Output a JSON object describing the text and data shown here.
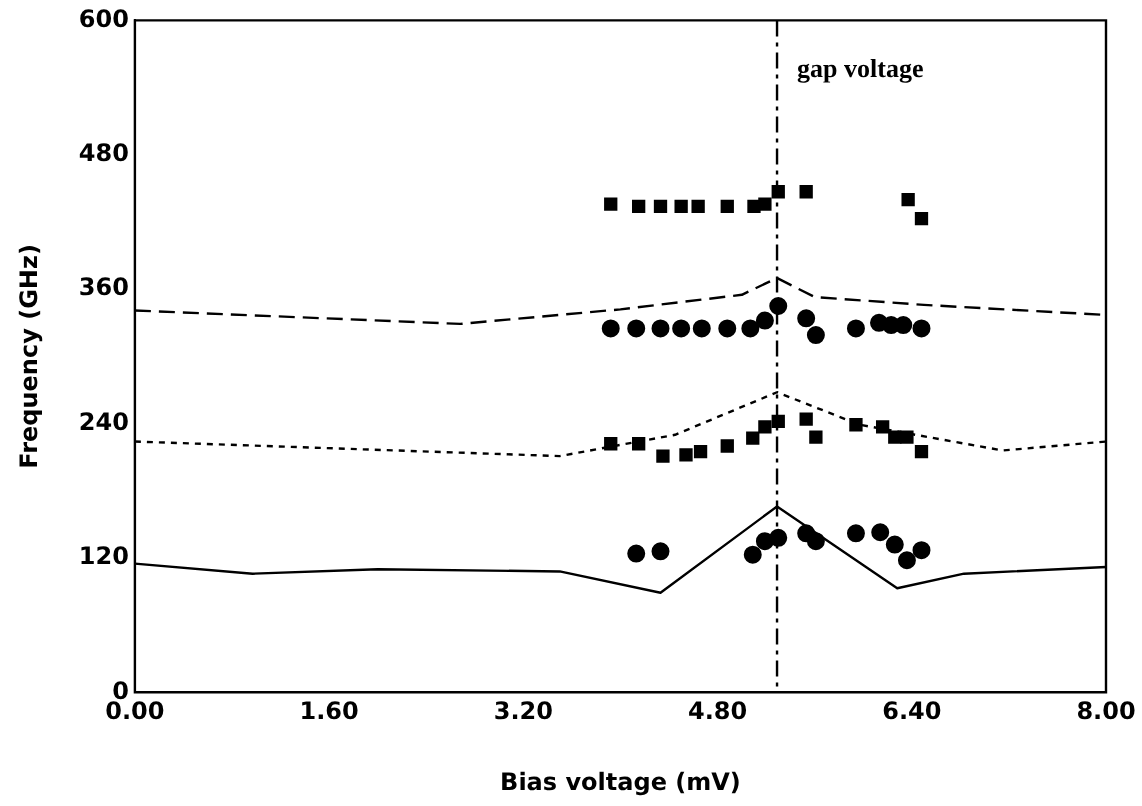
{
  "chart_data": {
    "type": "scatter",
    "xlabel": "Bias voltage (mV)",
    "ylabel": "Frequency (GHz)",
    "xlim": [
      0,
      8
    ],
    "xticks": [
      {
        "value": 0,
        "label": "0.00"
      },
      {
        "value": 1.6,
        "label": "1.60"
      },
      {
        "value": 3.2,
        "label": "3.20"
      },
      {
        "value": 4.8,
        "label": "4.80"
      },
      {
        "value": 6.4,
        "label": "6.40"
      },
      {
        "value": 8,
        "label": "8.00"
      }
    ],
    "ylim": [
      0,
      600
    ],
    "yticks": [
      0,
      120,
      240,
      360,
      480,
      600
    ],
    "grid": false,
    "legend": false,
    "ref_lines": [
      {
        "axis": "x",
        "value": 5.29,
        "label": "gap voltage",
        "line_style": "dashdot",
        "color": "#000000"
      }
    ],
    "series": [
      {
        "type": "scatter",
        "marker": "square",
        "color": "#000000",
        "x": [
          3.92,
          4.15,
          4.33,
          4.5,
          4.64,
          4.88,
          5.1,
          5.19,
          5.3,
          5.53,
          6.37,
          6.48
        ],
        "values": [
          436,
          434,
          434,
          434,
          434,
          434,
          434,
          436,
          447,
          447,
          440,
          423
        ]
      },
      {
        "type": "scatter",
        "marker": "circle",
        "color": "#000000",
        "x": [
          3.92,
          4.13,
          4.33,
          4.5,
          4.67,
          4.88,
          5.07,
          5.19,
          5.3,
          5.53,
          5.61,
          5.94,
          6.13,
          6.23,
          6.33,
          6.48
        ],
        "values": [
          325,
          325,
          325,
          325,
          325,
          325,
          325,
          332,
          345,
          334,
          319,
          325,
          330,
          328,
          328,
          325
        ]
      },
      {
        "type": "scatter",
        "marker": "square",
        "color": "#000000",
        "x": [
          3.92,
          4.15,
          4.35,
          4.54,
          4.66,
          4.88,
          5.09,
          5.19,
          5.3,
          5.53,
          5.61,
          5.94,
          6.16,
          6.26,
          6.36,
          6.48
        ],
        "values": [
          222,
          222,
          211,
          212,
          215,
          220,
          227,
          237,
          242,
          244,
          228,
          239,
          237,
          228,
          228,
          215
        ]
      },
      {
        "type": "scatter",
        "marker": "circle",
        "color": "#000000",
        "x": [
          4.13,
          4.33,
          5.09,
          5.19,
          5.3,
          5.53,
          5.61,
          5.94,
          6.14,
          6.26,
          6.36,
          6.48
        ],
        "values": [
          124,
          126,
          123,
          135,
          138,
          142,
          135,
          142,
          143,
          132,
          118,
          127
        ]
      },
      {
        "type": "line",
        "line_style": "dashed",
        "color": "#000000",
        "x": [
          0,
          2.68,
          4.0,
          5.0,
          5.29,
          5.6,
          6.5,
          8
        ],
        "values": [
          341,
          329,
          342,
          355,
          370,
          353,
          346,
          337
        ]
      },
      {
        "type": "line",
        "line_style": "dotted",
        "color": "#000000",
        "x": [
          0,
          3.5,
          4.45,
          5.29,
          5.97,
          7.15,
          8
        ],
        "values": [
          224,
          211,
          230,
          268,
          239,
          216,
          224
        ]
      },
      {
        "type": "line",
        "line_style": "solid",
        "color": "#000000",
        "x": [
          0,
          0.97,
          2.0,
          3.5,
          4.33,
          5.29,
          6.28,
          6.83,
          8
        ],
        "values": [
          115,
          106,
          110,
          108,
          89,
          166,
          93,
          106,
          112
        ]
      }
    ]
  }
}
